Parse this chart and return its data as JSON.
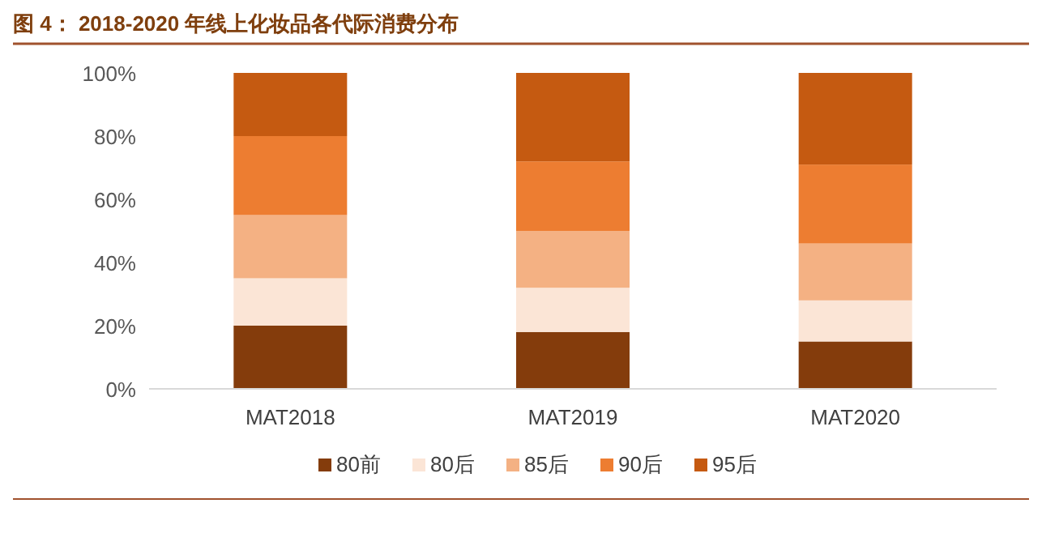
{
  "chart_data": {
    "type": "bar",
    "stacked": true,
    "title": "图 4： 2018-2020 年线上化妆品各代际消费分布",
    "categories": [
      "MAT2018",
      "MAT2019",
      "MAT2020"
    ],
    "series": [
      {
        "name": "80前",
        "color": "#843c0c",
        "values": [
          20,
          18,
          15
        ]
      },
      {
        "name": "80后",
        "color": "#fbe5d6",
        "values": [
          15,
          14,
          13
        ]
      },
      {
        "name": "85后",
        "color": "#f4b183",
        "values": [
          20,
          18,
          18
        ]
      },
      {
        "name": "90后",
        "color": "#ed7d31",
        "values": [
          25,
          22,
          25
        ]
      },
      {
        "name": "95后",
        "color": "#c55a11",
        "values": [
          20,
          28,
          29
        ]
      }
    ],
    "ylim": [
      0,
      100
    ],
    "yticks": [
      {
        "value": 0,
        "label": "0%"
      },
      {
        "value": 20,
        "label": "20%"
      },
      {
        "value": 40,
        "label": "40%"
      },
      {
        "value": 60,
        "label": "60%"
      },
      {
        "value": 80,
        "label": "80%"
      },
      {
        "value": 100,
        "label": "100%"
      }
    ],
    "grid": false,
    "legend": "bottom"
  }
}
